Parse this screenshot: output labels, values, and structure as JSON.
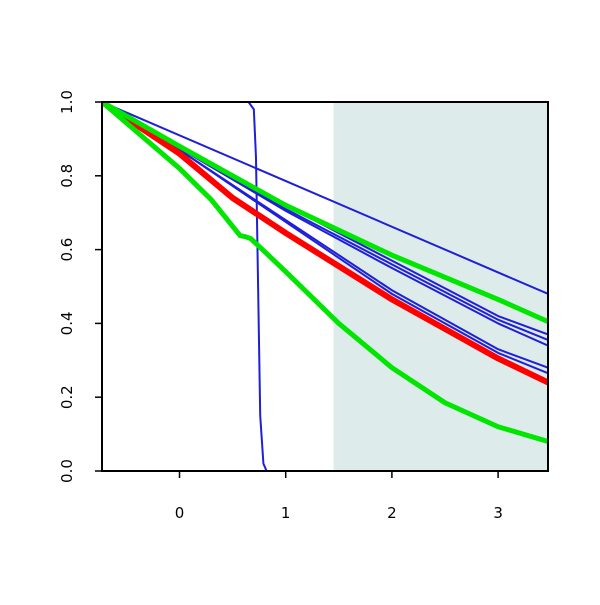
{
  "chart_data": {
    "type": "line",
    "title": "",
    "xlabel": "",
    "ylabel": "",
    "xlim": [
      -0.73,
      3.47
    ],
    "ylim": [
      0,
      1
    ],
    "x_ticks": [
      0,
      1,
      2,
      3
    ],
    "x_tick_labels": [
      "0",
      "1",
      "2",
      "3"
    ],
    "y_ticks": [
      0,
      0.2,
      0.4,
      0.6,
      0.8,
      1
    ],
    "y_tick_labels": [
      "0.0",
      "0.2",
      "0.4",
      "0.6",
      "0.8",
      "1.0"
    ],
    "grid": false,
    "legend": "none",
    "shaded_region": {
      "x_from": 1.45,
      "x_to": 3.47,
      "color": "#deebeb"
    },
    "colors": {
      "blue": "#1f1fd8",
      "red": "#ff0000",
      "green": "#00e600",
      "axis": "#000000"
    },
    "series": [
      {
        "color": "#1f1fd8",
        "width": 2,
        "x": [
          -0.73,
          0.65,
          0.7,
          0.72,
          0.74,
          0.76,
          0.79,
          0.82,
          3.47
        ],
        "y": [
          1.0,
          1.0,
          0.98,
          0.85,
          0.5,
          0.15,
          0.02,
          0.0,
          0.0
        ]
      },
      {
        "color": "#1f1fd8",
        "width": 2,
        "x": [
          -0.73,
          3.47
        ],
        "y": [
          1.0,
          0.48
        ]
      },
      {
        "color": "#1f1fd8",
        "width": 2,
        "x": [
          -0.73,
          0,
          1,
          2,
          3,
          3.47
        ],
        "y": [
          1.0,
          0.88,
          0.72,
          0.57,
          0.42,
          0.37
        ]
      },
      {
        "color": "#1f1fd8",
        "width": 2,
        "x": [
          -0.73,
          0,
          1,
          2,
          3,
          3.47
        ],
        "y": [
          1.0,
          0.88,
          0.71,
          0.56,
          0.41,
          0.355
        ]
      },
      {
        "color": "#1f1fd8",
        "width": 2,
        "x": [
          -0.73,
          0,
          1,
          2,
          3,
          3.47
        ],
        "y": [
          1.0,
          0.875,
          0.705,
          0.55,
          0.4,
          0.34
        ]
      },
      {
        "color": "#1f1fd8",
        "width": 2,
        "x": [
          -0.73,
          0,
          1,
          2,
          3,
          3.47
        ],
        "y": [
          1.0,
          0.87,
          0.68,
          0.49,
          0.33,
          0.28
        ]
      },
      {
        "color": "#1f1fd8",
        "width": 2,
        "x": [
          -0.73,
          0,
          1,
          2,
          3,
          3.47
        ],
        "y": [
          1.0,
          0.87,
          0.675,
          0.48,
          0.32,
          0.265
        ]
      },
      {
        "color": "#ff0000",
        "width": 6,
        "x": [
          -0.73,
          0,
          0.5,
          1,
          1.5,
          2,
          2.5,
          3,
          3.47
        ],
        "y": [
          1.0,
          0.86,
          0.74,
          0.645,
          0.555,
          0.465,
          0.385,
          0.305,
          0.24
        ]
      },
      {
        "color": "#00e600",
        "width": 5,
        "x": [
          -0.73,
          0,
          1,
          2,
          3,
          3.47
        ],
        "y": [
          1.0,
          0.88,
          0.72,
          0.585,
          0.465,
          0.405
        ]
      },
      {
        "color": "#00e600",
        "width": 5,
        "x": [
          -0.73,
          0,
          0.3,
          0.57,
          0.62,
          0.67,
          0.8,
          1,
          1.5,
          2,
          2.5,
          3,
          3.47
        ],
        "y": [
          1.0,
          0.82,
          0.735,
          0.638,
          0.635,
          0.63,
          0.595,
          0.54,
          0.4,
          0.28,
          0.185,
          0.12,
          0.08
        ]
      }
    ]
  }
}
